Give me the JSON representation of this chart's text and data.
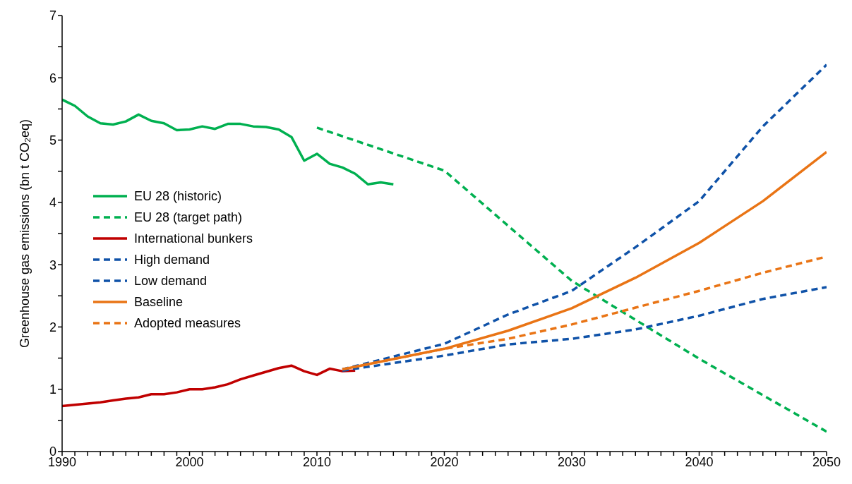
{
  "chart_data": {
    "type": "line",
    "ylabel": "Greenhouse gas emissions (bn t CO₂eq)",
    "xlim": [
      1990,
      2050
    ],
    "xticks": [
      1990,
      {
        "value": 1991,
        "label": null
      },
      {
        "value": 1992,
        "label": null
      },
      {
        "value": 1993,
        "label": null
      },
      {
        "value": 1994,
        "label": null
      },
      {
        "value": 1995,
        "label": null
      },
      {
        "value": 1996,
        "label": null
      },
      {
        "value": 1997,
        "label": null
      },
      {
        "value": 1998,
        "label": null
      },
      {
        "value": 1999,
        "label": null
      },
      2000,
      {
        "value": 2001,
        "label": null
      },
      {
        "value": 2002,
        "label": null
      },
      {
        "value": 2003,
        "label": null
      },
      {
        "value": 2004,
        "label": null
      },
      {
        "value": 2005,
        "label": null
      },
      {
        "value": 2006,
        "label": null
      },
      {
        "value": 2007,
        "label": null
      },
      {
        "value": 2008,
        "label": null
      },
      {
        "value": 2009,
        "label": null
      },
      2010,
      {
        "value": 2011,
        "label": null
      },
      {
        "value": 2012,
        "label": null
      },
      {
        "value": 2013,
        "label": null
      },
      {
        "value": 2014,
        "label": null
      },
      {
        "value": 2015,
        "label": null
      },
      {
        "value": 2016,
        "label": null
      },
      {
        "value": 2017,
        "label": null
      },
      {
        "value": 2018,
        "label": null
      },
      {
        "value": 2019,
        "label": null
      },
      2020,
      {
        "value": 2021,
        "label": null
      },
      {
        "value": 2022,
        "label": null
      },
      {
        "value": 2023,
        "label": null
      },
      {
        "value": 2024,
        "label": null
      },
      {
        "value": 2025,
        "label": null
      },
      {
        "value": 2026,
        "label": null
      },
      {
        "value": 2027,
        "label": null
      },
      {
        "value": 2028,
        "label": null
      },
      {
        "value": 2029,
        "label": null
      },
      2030,
      {
        "value": 2031,
        "label": null
      },
      {
        "value": 2032,
        "label": null
      },
      {
        "value": 2033,
        "label": null
      },
      {
        "value": 2034,
        "label": null
      },
      {
        "value": 2035,
        "label": null
      },
      {
        "value": 2036,
        "label": null
      },
      {
        "value": 2037,
        "label": null
      },
      {
        "value": 2038,
        "label": null
      },
      {
        "value": 2039,
        "label": null
      },
      2040,
      {
        "value": 2041,
        "label": null
      },
      {
        "value": 2042,
        "label": null
      },
      {
        "value": 2043,
        "label": null
      },
      {
        "value": 2044,
        "label": null
      },
      {
        "value": 2045,
        "label": null
      },
      {
        "value": 2046,
        "label": null
      },
      {
        "value": 2047,
        "label": null
      },
      {
        "value": 2048,
        "label": null
      },
      {
        "value": 2049,
        "label": null
      },
      2050
    ],
    "ylim": [
      0,
      7
    ],
    "yticks": [
      0,
      {
        "value": 0.5,
        "label": null
      },
      1,
      {
        "value": 1.5,
        "label": null
      },
      2,
      {
        "value": 2.5,
        "label": null
      },
      3,
      {
        "value": 3.5,
        "label": null
      },
      4,
      {
        "value": 4.5,
        "label": null
      },
      5,
      {
        "value": 5.5,
        "label": null
      },
      6,
      {
        "value": 6.5,
        "label": null
      },
      7
    ],
    "grid": false,
    "legend": "left",
    "marker": "none",
    "series": [
      {
        "name": "EU 28 (historic)",
        "color": "#00b050",
        "line_style": "solid",
        "x": [
          1990,
          1991,
          1992,
          1993,
          1994,
          1995,
          1996,
          1997,
          1998,
          1999,
          2000,
          2001,
          2002,
          2003,
          2004,
          2005,
          2006,
          2007,
          2008,
          2009,
          2010,
          2011,
          2012,
          2013,
          2014,
          2015,
          2016
        ],
        "values": [
          5.65,
          5.55,
          5.38,
          5.27,
          5.25,
          5.3,
          5.41,
          5.31,
          5.27,
          5.16,
          5.17,
          5.22,
          5.18,
          5.26,
          5.26,
          5.22,
          5.21,
          5.17,
          5.05,
          4.67,
          4.78,
          4.62,
          4.56,
          4.46,
          4.29,
          4.32,
          4.29
        ]
      },
      {
        "name": "EU 28 (target path)",
        "color": "#00b050",
        "line_style": "dashed",
        "x": [
          2010,
          2020,
          2030,
          2040,
          2050
        ],
        "values": [
          5.2,
          4.51,
          2.74,
          1.49,
          0.32
        ]
      },
      {
        "name": "International bunkers",
        "color": "#c00000",
        "line_style": "solid",
        "x": [
          1990,
          1991,
          1992,
          1993,
          1994,
          1995,
          1996,
          1997,
          1998,
          1999,
          2000,
          2001,
          2002,
          2003,
          2004,
          2005,
          2006,
          2007,
          2008,
          2009,
          2010,
          2011,
          2012,
          2013
        ],
        "values": [
          0.73,
          0.75,
          0.77,
          0.79,
          0.82,
          0.85,
          0.87,
          0.92,
          0.92,
          0.95,
          1.0,
          1.0,
          1.03,
          1.08,
          1.16,
          1.22,
          1.28,
          1.34,
          1.38,
          1.29,
          1.23,
          1.33,
          1.29,
          1.3
        ]
      },
      {
        "name": "High demand",
        "color": "#0f52a8",
        "line_style": "dashed",
        "x": [
          2012,
          2020,
          2025,
          2030,
          2035,
          2040,
          2045,
          2050
        ],
        "values": [
          1.32,
          1.73,
          2.2,
          2.58,
          3.28,
          4.02,
          5.22,
          6.21
        ]
      },
      {
        "name": "Low demand",
        "color": "#0f52a8",
        "line_style": "dashed",
        "x": [
          2012,
          2020,
          2025,
          2030,
          2035,
          2040,
          2045,
          2050
        ],
        "values": [
          1.3,
          1.54,
          1.72,
          1.81,
          1.96,
          2.18,
          2.45,
          2.64
        ]
      },
      {
        "name": "Baseline",
        "color": "#e97415",
        "line_style": "solid",
        "x": [
          2012,
          2020,
          2025,
          2030,
          2035,
          2040,
          2045,
          2050
        ],
        "values": [
          1.32,
          1.65,
          1.94,
          2.3,
          2.79,
          3.35,
          4.02,
          4.81
        ]
      },
      {
        "name": "Adopted measures",
        "color": "#e97415",
        "line_style": "dashed",
        "x": [
          2012,
          2020,
          2025,
          2030,
          2035,
          2040,
          2045,
          2050
        ],
        "values": [
          1.32,
          1.65,
          1.81,
          2.04,
          2.31,
          2.58,
          2.87,
          3.13
        ]
      }
    ]
  }
}
